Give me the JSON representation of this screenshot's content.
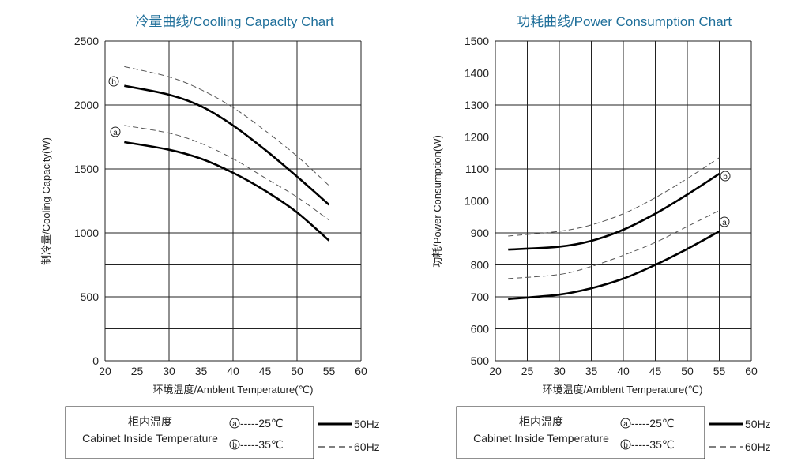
{
  "legend": {
    "zh_label": "柜内温度",
    "en_label": "Cabinet Inside Temperature",
    "marker_a": "a",
    "marker_b": "b",
    "a_label": "-----25℃",
    "b_label": "-----35℃",
    "solid_label": "50Hz",
    "dash_label": "60Hz"
  },
  "chart_data": [
    {
      "type": "line",
      "title": "冷量曲线/Coolling Capaclty Chart",
      "xlabel": "环境温度/Amblent Temperature(℃)",
      "ylabel": "制冷量/Cooling  Capacity(W)",
      "xlim": [
        20,
        60
      ],
      "ylim": [
        0,
        2500
      ],
      "xticks": [
        "20",
        "25",
        "30",
        "35",
        "40",
        "45",
        "50",
        "55",
        "60"
      ],
      "yticks": [
        "0",
        "500",
        "1000",
        "1500",
        "2000",
        "2500"
      ],
      "grid": true,
      "series": [
        {
          "name": "b 50Hz",
          "marker": "b",
          "style": "solid",
          "x": [
            23,
            30,
            35,
            40,
            45,
            50,
            55
          ],
          "y": [
            2150,
            2080,
            1990,
            1840,
            1650,
            1440,
            1220
          ]
        },
        {
          "name": "b 60Hz",
          "marker": "b",
          "style": "dashed",
          "x": [
            23,
            30,
            35,
            40,
            45,
            50,
            55
          ],
          "y": [
            2300,
            2220,
            2120,
            1980,
            1800,
            1600,
            1370
          ]
        },
        {
          "name": "a 50Hz",
          "marker": "a",
          "style": "solid",
          "x": [
            23,
            30,
            35,
            40,
            45,
            50,
            55
          ],
          "y": [
            1710,
            1650,
            1580,
            1470,
            1330,
            1160,
            940
          ]
        },
        {
          "name": "a 60Hz",
          "marker": "a",
          "style": "dashed",
          "x": [
            23,
            30,
            35,
            40,
            45,
            50,
            55
          ],
          "y": [
            1840,
            1780,
            1700,
            1580,
            1430,
            1280,
            1100
          ]
        }
      ]
    },
    {
      "type": "line",
      "title": "功耗曲线/Power Consumption Chart",
      "xlabel": "环境温度/Amblent Temperature(℃)",
      "ylabel": "功耗/Power Consumption(W)",
      "xlim": [
        20,
        60
      ],
      "ylim": [
        500,
        1500
      ],
      "xticks": [
        "20",
        "25",
        "30",
        "35",
        "40",
        "45",
        "50",
        "55",
        "60"
      ],
      "yticks": [
        "500",
        "600",
        "700",
        "800",
        "900",
        "1000",
        "1100",
        "1200",
        "1300",
        "1400",
        "1500"
      ],
      "grid": true,
      "series": [
        {
          "name": "b 50Hz",
          "marker": "b",
          "style": "solid",
          "x": [
            22,
            30,
            35,
            40,
            45,
            50,
            55
          ],
          "y": [
            848,
            857,
            875,
            910,
            960,
            1020,
            1085
          ]
        },
        {
          "name": "b 60Hz",
          "marker": "b",
          "style": "dashed",
          "x": [
            22,
            30,
            35,
            40,
            45,
            50,
            55
          ],
          "y": [
            890,
            905,
            925,
            960,
            1010,
            1070,
            1135
          ]
        },
        {
          "name": "a 50Hz",
          "marker": "a",
          "style": "solid",
          "x": [
            22,
            30,
            35,
            40,
            45,
            50,
            55
          ],
          "y": [
            693,
            707,
            727,
            757,
            800,
            850,
            905
          ]
        },
        {
          "name": "a 60Hz",
          "marker": "a",
          "style": "dashed",
          "x": [
            22,
            30,
            35,
            40,
            45,
            50,
            55
          ],
          "y": [
            757,
            770,
            795,
            830,
            870,
            920,
            970
          ]
        }
      ]
    }
  ]
}
